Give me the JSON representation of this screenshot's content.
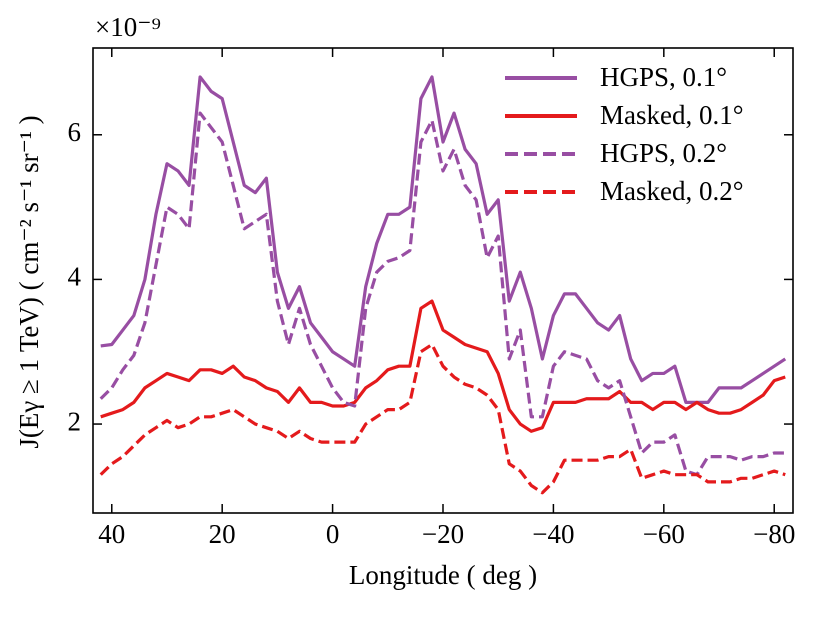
{
  "chart_data": {
    "type": "line",
    "y_offset_label": "×10⁻⁹",
    "xlabel": "Longitude ( deg )",
    "ylabel": "J(Eγ ≥ 1 TeV) ( cm⁻² s⁻¹ sr⁻¹ )",
    "x": [
      42,
      40,
      38,
      36,
      34,
      32,
      30,
      28,
      26,
      24,
      22,
      20,
      18,
      16,
      14,
      12,
      10,
      8,
      6,
      4,
      2,
      0,
      -2,
      -4,
      -6,
      -8,
      -10,
      -12,
      -14,
      -16,
      -18,
      -20,
      -22,
      -24,
      -26,
      -28,
      -30,
      -32,
      -34,
      -36,
      -38,
      -40,
      -42,
      -44,
      -46,
      -48,
      -50,
      -52,
      -54,
      -56,
      -58,
      -60,
      -62,
      -64,
      -66,
      -68,
      -70,
      -72,
      -74,
      -76,
      -78,
      -80,
      -82
    ],
    "series": [
      {
        "name": "HGPS, 0.1°",
        "color": "#984ea3",
        "dash": "solid",
        "values": [
          3.08,
          3.1,
          3.3,
          3.5,
          4.0,
          4.9,
          5.6,
          5.5,
          5.3,
          6.8,
          6.6,
          6.5,
          5.9,
          5.3,
          5.2,
          5.4,
          4.1,
          3.6,
          3.9,
          3.4,
          3.2,
          3.0,
          2.9,
          2.8,
          3.9,
          4.5,
          4.9,
          4.9,
          5.0,
          6.5,
          6.8,
          5.9,
          6.3,
          5.8,
          5.6,
          4.9,
          5.1,
          3.7,
          4.1,
          3.6,
          2.9,
          3.5,
          3.8,
          3.8,
          3.6,
          3.4,
          3.3,
          3.5,
          2.9,
          2.6,
          2.7,
          2.7,
          2.8,
          2.3,
          2.3,
          2.3,
          2.5,
          2.5,
          2.5,
          2.6,
          2.7,
          2.8,
          2.9
        ]
      },
      {
        "name": "Masked, 0.1°",
        "color": "#e41a1c",
        "dash": "solid",
        "values": [
          2.1,
          2.15,
          2.2,
          2.3,
          2.5,
          2.6,
          2.7,
          2.65,
          2.6,
          2.75,
          2.75,
          2.7,
          2.8,
          2.65,
          2.6,
          2.5,
          2.45,
          2.3,
          2.5,
          2.3,
          2.3,
          2.25,
          2.25,
          2.3,
          2.5,
          2.6,
          2.75,
          2.8,
          2.8,
          3.6,
          3.7,
          3.3,
          3.2,
          3.1,
          3.05,
          3.0,
          2.7,
          2.2,
          2.0,
          1.9,
          1.95,
          2.3,
          2.3,
          2.3,
          2.35,
          2.35,
          2.35,
          2.45,
          2.3,
          2.3,
          2.2,
          2.3,
          2.3,
          2.2,
          2.3,
          2.2,
          2.15,
          2.15,
          2.2,
          2.3,
          2.4,
          2.6,
          2.65
        ]
      },
      {
        "name": "HGPS, 0.2°",
        "color": "#984ea3",
        "dash": "dashed",
        "values": [
          2.35,
          2.5,
          2.75,
          2.95,
          3.4,
          4.2,
          5.0,
          4.9,
          4.7,
          6.3,
          6.1,
          5.9,
          5.3,
          4.7,
          4.8,
          4.9,
          3.7,
          3.1,
          3.6,
          3.1,
          2.8,
          2.5,
          2.3,
          2.25,
          3.6,
          4.1,
          4.25,
          4.3,
          4.4,
          5.9,
          6.2,
          5.5,
          5.8,
          5.3,
          5.1,
          4.3,
          4.6,
          2.9,
          3.3,
          2.1,
          2.1,
          2.8,
          3.0,
          2.95,
          2.9,
          2.6,
          2.5,
          2.6,
          2.1,
          1.6,
          1.75,
          1.75,
          1.85,
          1.35,
          1.3,
          1.55,
          1.55,
          1.55,
          1.5,
          1.55,
          1.55,
          1.6,
          1.6
        ]
      },
      {
        "name": "Masked, 0.2°",
        "color": "#e41a1c",
        "dash": "dashed",
        "values": [
          1.3,
          1.45,
          1.55,
          1.7,
          1.85,
          1.95,
          2.05,
          1.95,
          2.0,
          2.1,
          2.1,
          2.15,
          2.2,
          2.1,
          2.0,
          1.95,
          1.9,
          1.8,
          1.9,
          1.8,
          1.75,
          1.75,
          1.75,
          1.75,
          2.0,
          2.1,
          2.2,
          2.2,
          2.3,
          3.0,
          3.1,
          2.8,
          2.65,
          2.55,
          2.5,
          2.4,
          2.2,
          1.45,
          1.35,
          1.15,
          1.05,
          1.2,
          1.5,
          1.5,
          1.5,
          1.5,
          1.55,
          1.55,
          1.65,
          1.25,
          1.3,
          1.35,
          1.3,
          1.3,
          1.3,
          1.2,
          1.2,
          1.2,
          1.25,
          1.25,
          1.3,
          1.35,
          1.3
        ]
      }
    ],
    "xlim": [
      43.4,
      -83.4
    ],
    "ylim": [
      0.77,
      7.2
    ],
    "xticks": [
      40,
      20,
      0,
      {
        "value": -20,
        "label": "−20"
      },
      {
        "value": -40,
        "label": "−40"
      },
      {
        "value": -60,
        "label": "−60"
      },
      {
        "value": -80,
        "label": "−80"
      }
    ],
    "yticks": [
      2,
      4,
      6
    ],
    "legend": "upper right"
  }
}
